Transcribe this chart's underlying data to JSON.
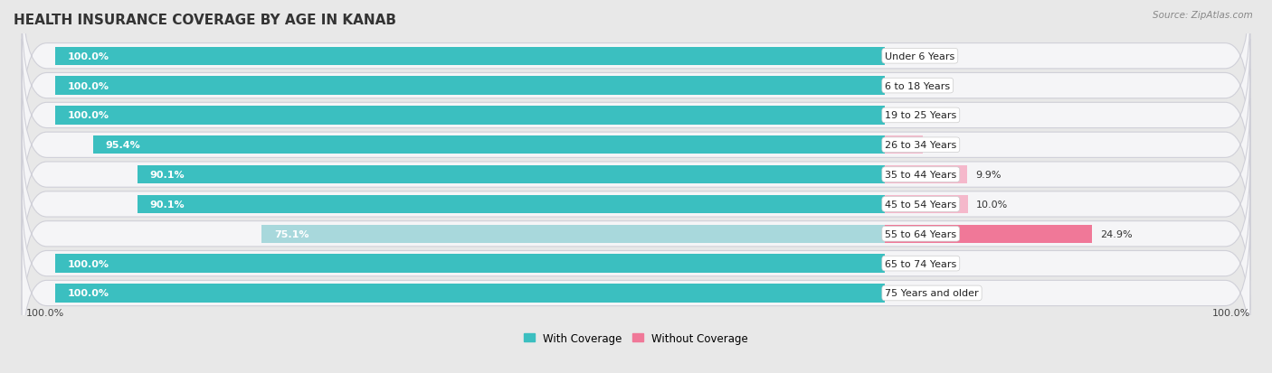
{
  "title": "HEALTH INSURANCE COVERAGE BY AGE IN KANAB",
  "source": "Source: ZipAtlas.com",
  "categories": [
    "Under 6 Years",
    "6 to 18 Years",
    "19 to 25 Years",
    "26 to 34 Years",
    "35 to 44 Years",
    "45 to 54 Years",
    "55 to 64 Years",
    "65 to 74 Years",
    "75 Years and older"
  ],
  "with_coverage": [
    100.0,
    100.0,
    100.0,
    95.4,
    90.1,
    90.1,
    75.1,
    100.0,
    100.0
  ],
  "without_coverage": [
    0.0,
    0.0,
    0.0,
    4.6,
    9.9,
    10.0,
    24.9,
    0.0,
    0.0
  ],
  "color_with": "#3bbfc0",
  "color_with_light": "#a8d8dc",
  "color_without": "#f07898",
  "color_without_light": "#f5b8cb",
  "bg_color": "#e8e8e8",
  "row_bg": "#f5f5f7",
  "title_fontsize": 11,
  "label_fontsize": 8,
  "tick_fontsize": 8,
  "legend_fontsize": 8.5,
  "bar_height": 0.62,
  "max_val": 100.0
}
